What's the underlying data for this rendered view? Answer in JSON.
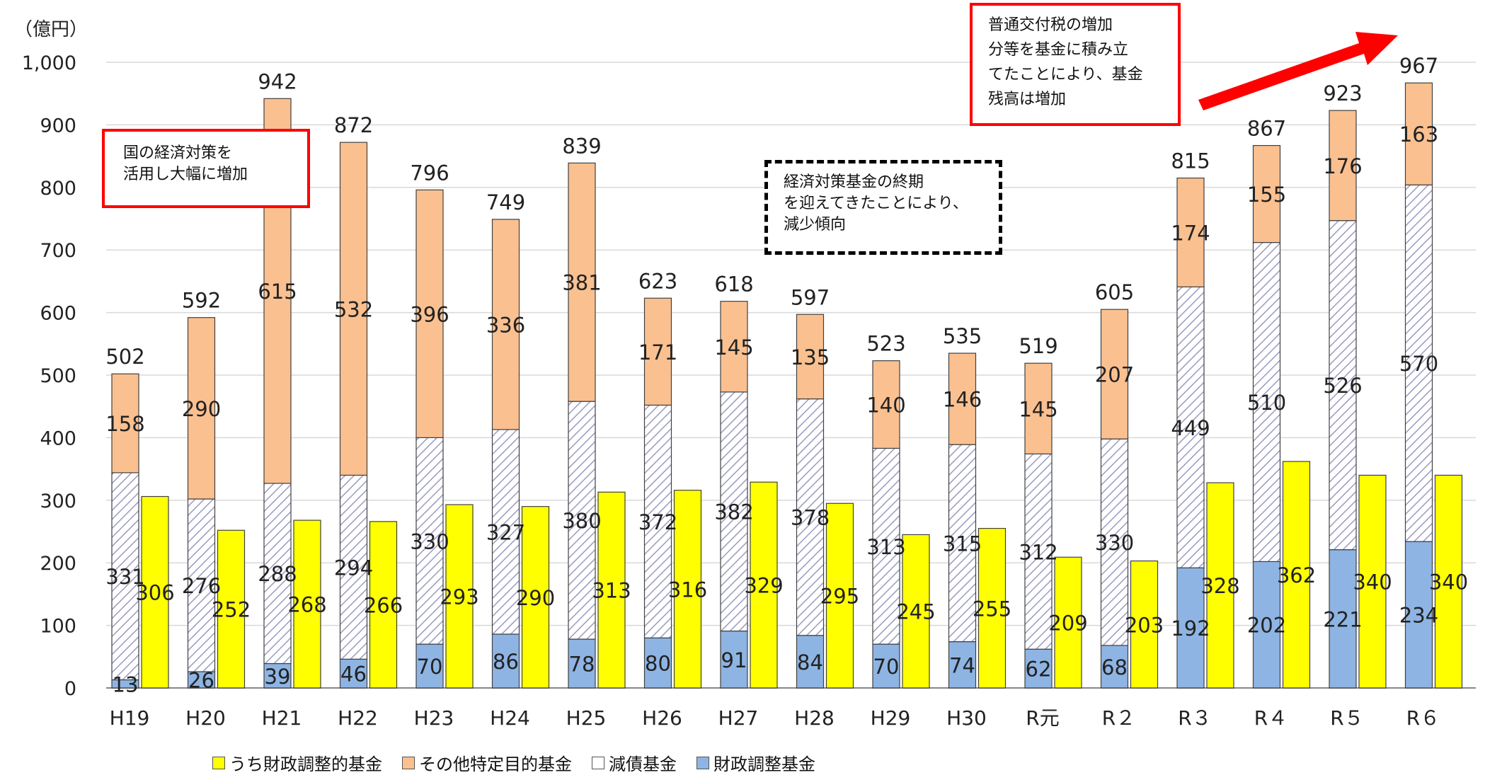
{
  "chart_data": {
    "type": "bar",
    "unit_label": "（億円）",
    "ylim": [
      0,
      1000
    ],
    "y_ticks": [
      "0",
      "100",
      "200",
      "300",
      "400",
      "500",
      "600",
      "700",
      "800",
      "900",
      "1,000"
    ],
    "categories": [
      "H19",
      "H20",
      "H21",
      "H22",
      "H23",
      "H24",
      "H25",
      "H26",
      "H27",
      "H28",
      "H29",
      "H30",
      "R元",
      "R２",
      "R３",
      "R４",
      "R５",
      "R６"
    ],
    "stacked_series": [
      {
        "name": "財政調整基金",
        "color": "#8eb4e3",
        "values": [
          13,
          26,
          39,
          46,
          70,
          86,
          78,
          80,
          91,
          84,
          70,
          74,
          62,
          68,
          192,
          202,
          221,
          234
        ]
      },
      {
        "name": "減債基金",
        "color": "#ffffff",
        "pattern": "diagonal-hatch",
        "values": [
          331,
          276,
          288,
          294,
          330,
          327,
          380,
          372,
          382,
          378,
          313,
          315,
          312,
          330,
          449,
          510,
          526,
          570
        ]
      },
      {
        "name": "その他特定目的基金",
        "color": "#fac090",
        "values": [
          158,
          290,
          615,
          532,
          396,
          336,
          381,
          171,
          145,
          135,
          140,
          146,
          145,
          207,
          174,
          155,
          176,
          163
        ]
      }
    ],
    "totals": [
      "502",
      "592",
      "942",
      "872",
      "796",
      "749",
      "839",
      "623",
      "618",
      "597",
      "523",
      "535",
      "519",
      "605",
      "815",
      "867",
      "923",
      "967"
    ],
    "side_series": {
      "name": "うち財政調整的基金",
      "color": "#ffff00",
      "values": [
        306,
        252,
        268,
        266,
        293,
        290,
        313,
        316,
        329,
        295,
        245,
        255,
        209,
        203,
        328,
        362,
        340,
        340
      ]
    },
    "legend": [
      "うち財政調整的基金",
      "その他特定目的基金",
      "減債基金",
      "財政調整基金"
    ],
    "grid": true,
    "legend_position": "bottom"
  },
  "annotations": {
    "left": [
      "国の経済対策を",
      "活用し大幅に増加"
    ],
    "middle": [
      "経済対策基金の終期",
      "を迎えてきたことにより、",
      "減少傾向"
    ],
    "right": [
      "普通交付税の増加",
      "分等を基金に積み立",
      "てたことにより、基金",
      "残高は増加"
    ]
  },
  "colors": {
    "arrow": "#ff0000",
    "grid": "#d9d9d9",
    "bar_border": "#404040"
  }
}
